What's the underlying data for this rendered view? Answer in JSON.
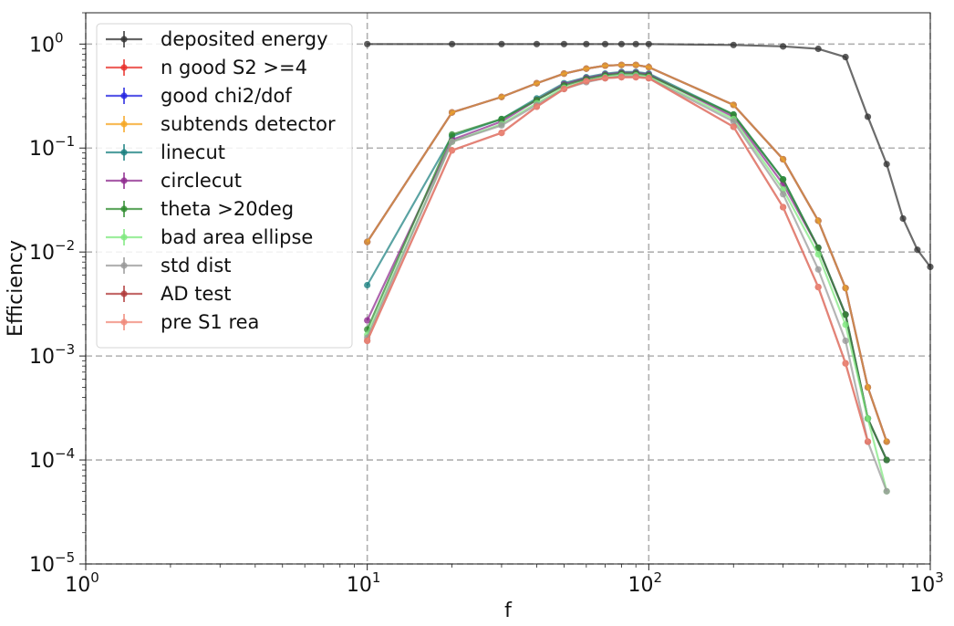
{
  "chart_data": {
    "type": "line",
    "title": "",
    "xlabel": "f",
    "ylabel": "Efficiency",
    "xscale": "log",
    "yscale": "log",
    "xlim": [
      1,
      1000
    ],
    "ylim": [
      1e-05,
      2
    ],
    "grid": "dashed, at major decades",
    "legend_placement": "top-left",
    "x_ticks": [
      {
        "value": 1,
        "base": "10",
        "exp": "0"
      },
      {
        "value": 10,
        "base": "10",
        "exp": "1"
      },
      {
        "value": 100,
        "base": "10",
        "exp": "2"
      },
      {
        "value": 1000,
        "base": "10",
        "exp": "3"
      }
    ],
    "y_ticks": [
      {
        "value": 1,
        "base": "10",
        "exp": "0"
      },
      {
        "value": 0.1,
        "base": "10",
        "exp": "−1"
      },
      {
        "value": 0.01,
        "base": "10",
        "exp": "−2"
      },
      {
        "value": 0.001,
        "base": "10",
        "exp": "−3"
      },
      {
        "value": 0.0001,
        "base": "10",
        "exp": "−4"
      },
      {
        "value": 1e-05,
        "base": "10",
        "exp": "−5"
      }
    ],
    "series": [
      {
        "name": "deposited energy",
        "color": "#333333",
        "x": [
          10,
          20,
          30,
          40,
          50,
          60,
          70,
          80,
          90,
          100,
          200,
          300,
          400,
          500,
          600,
          700,
          800,
          900,
          1000
        ],
        "y": [
          1.0,
          1.0,
          1.0,
          1.0,
          1.0,
          1.0,
          1.0,
          1.0,
          1.0,
          1.0,
          0.98,
          0.95,
          0.9,
          0.75,
          0.2,
          0.07,
          0.021,
          0.0105,
          0.0072
        ]
      },
      {
        "name": "n good S2 >=4",
        "color": "#e8302a",
        "x": [
          10,
          20,
          30,
          40,
          50,
          60,
          70,
          80,
          90,
          100,
          200,
          300,
          400,
          500,
          600,
          700
        ],
        "y": [
          0.0125,
          0.22,
          0.31,
          0.42,
          0.52,
          0.58,
          0.62,
          0.63,
          0.63,
          0.6,
          0.26,
          0.078,
          0.02,
          0.0045,
          0.0005,
          0.00015
        ]
      },
      {
        "name": "good chi2/dof",
        "color": "#2323e0",
        "x": [
          10,
          20,
          30,
          40,
          50,
          60,
          70,
          80,
          90,
          100,
          200,
          300,
          400,
          500,
          600,
          700
        ],
        "y": [
          0.0125,
          0.22,
          0.31,
          0.42,
          0.52,
          0.58,
          0.62,
          0.63,
          0.63,
          0.6,
          0.26,
          0.078,
          0.02,
          0.0045,
          0.0005,
          0.00015
        ]
      },
      {
        "name": "subtends detector",
        "color": "#f5a623",
        "x": [
          10,
          20,
          30,
          40,
          50,
          60,
          70,
          80,
          90,
          100,
          200,
          300,
          400,
          500,
          600,
          700
        ],
        "y": [
          0.0125,
          0.22,
          0.31,
          0.42,
          0.52,
          0.58,
          0.62,
          0.63,
          0.63,
          0.6,
          0.26,
          0.078,
          0.02,
          0.0045,
          0.0005,
          0.00015
        ]
      },
      {
        "name": "linecut",
        "color": "#1a8080",
        "x": [
          10,
          20,
          30,
          40,
          50,
          60,
          70,
          80,
          90,
          100,
          200,
          300,
          400,
          500,
          600,
          700
        ],
        "y": [
          0.0048,
          0.13,
          0.19,
          0.3,
          0.42,
          0.48,
          0.52,
          0.54,
          0.54,
          0.52,
          0.21,
          0.05,
          0.011,
          0.0025,
          0.00025,
          0.0001
        ]
      },
      {
        "name": "circlecut",
        "color": "#8e2a8e",
        "x": [
          10,
          20,
          30,
          40,
          50,
          60,
          70,
          80,
          90,
          100,
          200,
          300,
          400,
          500,
          600,
          700
        ],
        "y": [
          0.0022,
          0.12,
          0.18,
          0.29,
          0.41,
          0.47,
          0.51,
          0.53,
          0.53,
          0.51,
          0.2,
          0.045,
          0.011,
          0.0025,
          0.00025,
          0.0001
        ]
      },
      {
        "name": "theta >20deg",
        "color": "#2e8b2e",
        "x": [
          10,
          20,
          30,
          40,
          50,
          60,
          70,
          80,
          90,
          100,
          200,
          300,
          400,
          500,
          600,
          700
        ],
        "y": [
          0.0018,
          0.135,
          0.19,
          0.29,
          0.4,
          0.46,
          0.5,
          0.52,
          0.52,
          0.5,
          0.21,
          0.05,
          0.011,
          0.0025,
          0.00025,
          0.0001
        ]
      },
      {
        "name": "bad area ellipse",
        "color": "#7ee87e",
        "x": [
          10,
          20,
          30,
          40,
          50,
          60,
          70,
          80,
          90,
          100,
          200,
          300,
          400,
          500,
          600,
          700
        ],
        "y": [
          0.0016,
          0.115,
          0.17,
          0.27,
          0.38,
          0.44,
          0.48,
          0.5,
          0.5,
          0.48,
          0.19,
          0.04,
          0.0095,
          0.002,
          0.00025,
          5e-05
        ]
      },
      {
        "name": "std dist",
        "color": "#999999",
        "x": [
          10,
          20,
          30,
          40,
          50,
          60,
          70,
          80,
          90,
          100,
          200,
          300,
          400,
          500,
          600,
          700
        ],
        "y": [
          0.0015,
          0.115,
          0.165,
          0.26,
          0.37,
          0.43,
          0.47,
          0.49,
          0.49,
          0.47,
          0.18,
          0.036,
          0.0068,
          0.0014,
          0.00015,
          5e-05
        ]
      },
      {
        "name": "AD test",
        "color": "#b03a3a",
        "x": [
          10,
          20,
          30,
          40,
          50,
          60,
          70,
          80,
          90,
          100,
          200,
          300,
          400,
          500,
          600
        ],
        "y": [
          0.0014,
          0.095,
          0.14,
          0.25,
          0.37,
          0.44,
          0.47,
          0.48,
          0.48,
          0.47,
          0.16,
          0.027,
          0.0046,
          0.00085,
          0.00015
        ]
      },
      {
        "name": "pre S1 rea",
        "color": "#f08a7a",
        "x": [
          10,
          20,
          30,
          40,
          50,
          60,
          70,
          80,
          90,
          100,
          200,
          300,
          400,
          500,
          600
        ],
        "y": [
          0.0014,
          0.095,
          0.14,
          0.25,
          0.37,
          0.44,
          0.47,
          0.48,
          0.48,
          0.47,
          0.16,
          0.027,
          0.0046,
          0.00085,
          0.00015
        ]
      }
    ]
  }
}
